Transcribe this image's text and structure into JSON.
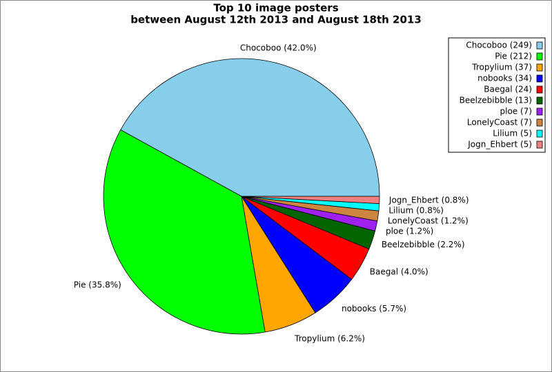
{
  "chart_data": {
    "type": "pie",
    "title": [
      "Top 10 image posters",
      "between August 12th 2013 and August 18th 2013"
    ],
    "values": [
      249,
      212,
      37,
      34,
      24,
      13,
      7,
      7,
      5,
      5
    ],
    "legend_labels": [
      "Chocoboo (249)",
      "Pie (212)",
      "Tropylium (37)",
      "nobooks (34)",
      "Baegal (24)",
      "Beelzebibble (13)",
      "ploe (7)",
      "LonelyCoast (7)",
      "Lilium (5)",
      "Jogn_Ehbert (5)"
    ],
    "slice_labels": [
      "Chocoboo (42.0%)",
      "Pie (35.8%)",
      "Tropylium (6.2%)",
      "nobooks (5.7%)",
      "Baegal (4.0%)",
      "Beelzebibble (2.2%)",
      "ploe (1.2%)",
      "LonelyCoast (1.2%)",
      "Lilium (0.8%)",
      "Jogn_Ehbert (0.8%)"
    ],
    "colors": [
      "#87ceeb",
      "#00ff00",
      "#ffa500",
      "#0000ff",
      "#ff0000",
      "#006400",
      "#a020f0",
      "#cd853f",
      "#00ffff",
      "#f08080"
    ],
    "legend": "upper right"
  }
}
